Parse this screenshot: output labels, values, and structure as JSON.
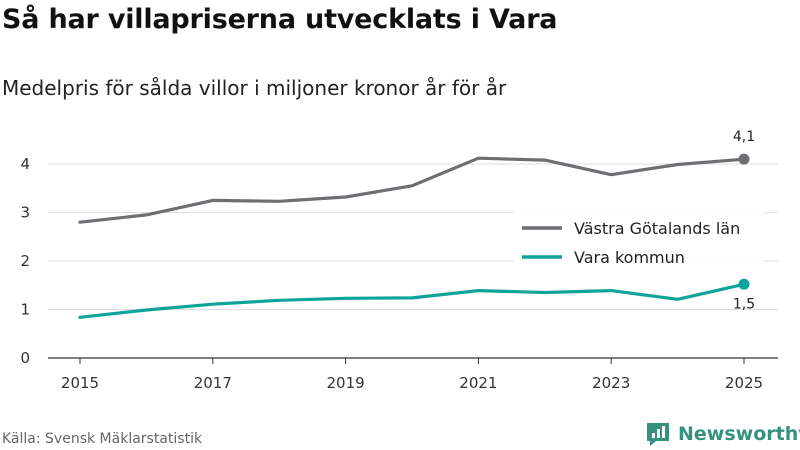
{
  "header": {
    "title": "Så har villapriserna utvecklats i Vara",
    "subtitle": "Medelpris för sålda villor i miljoner kronor år för år"
  },
  "footer": {
    "source": "Källa: Svensk Mäklarstatistik",
    "brand": "Newsworthy"
  },
  "colors": {
    "vastra": "#6e6e73",
    "vara": "#10a39a",
    "grid": "#dddddd",
    "brand": "#36927f"
  },
  "chart_data": {
    "type": "line",
    "title": "Så har villapriserna utvecklats i Vara",
    "subtitle": "Medelpris för sålda villor i miljoner kronor år för år",
    "xlabel": "",
    "ylabel": "",
    "x": [
      2015,
      2016,
      2017,
      2018,
      2019,
      2020,
      2021,
      2022,
      2023,
      2024,
      2025
    ],
    "x_ticks": [
      "2015",
      "2017",
      "2019",
      "2021",
      "2023",
      "2025"
    ],
    "y_ticks": [
      "0",
      "1",
      "2",
      "3",
      "4"
    ],
    "ylim": [
      0,
      4.5
    ],
    "grid": true,
    "legend_position": "right",
    "series": [
      {
        "name": "Västra Götalands län",
        "color": "#6e6e73",
        "values": [
          2.8,
          2.95,
          3.25,
          3.23,
          3.32,
          3.55,
          4.12,
          4.08,
          3.78,
          3.99,
          4.1
        ],
        "end_label": "4,1"
      },
      {
        "name": "Vara kommun",
        "color": "#10a39a",
        "values": [
          0.84,
          0.99,
          1.11,
          1.19,
          1.23,
          1.24,
          1.39,
          1.35,
          1.39,
          1.21,
          1.52
        ],
        "end_label": "1,5"
      }
    ]
  }
}
